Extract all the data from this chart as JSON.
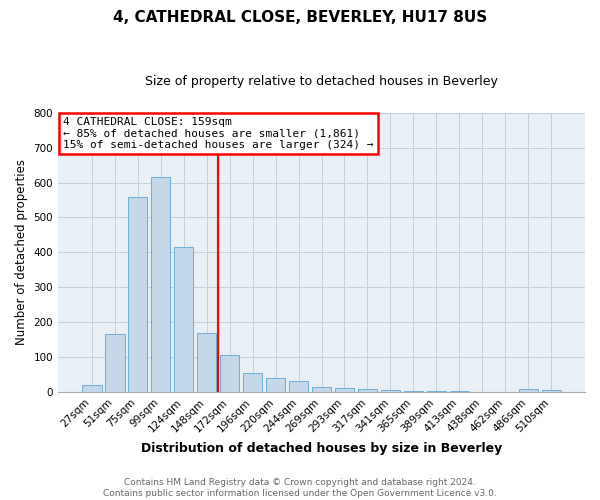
{
  "title1": "4, CATHEDRAL CLOSE, BEVERLEY, HU17 8US",
  "title2": "Size of property relative to detached houses in Beverley",
  "xlabel": "Distribution of detached houses by size in Beverley",
  "ylabel": "Number of detached properties",
  "categories": [
    "27sqm",
    "51sqm",
    "75sqm",
    "99sqm",
    "124sqm",
    "148sqm",
    "172sqm",
    "196sqm",
    "220sqm",
    "244sqm",
    "269sqm",
    "293sqm",
    "317sqm",
    "341sqm",
    "365sqm",
    "389sqm",
    "413sqm",
    "438sqm",
    "462sqm",
    "486sqm",
    "510sqm"
  ],
  "values": [
    20,
    165,
    560,
    615,
    415,
    170,
    105,
    55,
    40,
    32,
    15,
    10,
    8,
    5,
    4,
    3,
    2,
    1,
    1,
    8,
    6
  ],
  "bar_color": "#c5d8ea",
  "bar_edge_color": "#6aaed6",
  "vline_x": 5.5,
  "vline_color": "red",
  "annotation_text_line1": "4 CATHEDRAL CLOSE: 159sqm",
  "annotation_text_line2": "← 85% of detached houses are smaller (1,861)",
  "annotation_text_line3": "15% of semi-detached houses are larger (324) →",
  "annotation_box_facecolor": "white",
  "annotation_box_edgecolor": "red",
  "ylim": [
    0,
    800
  ],
  "yticks": [
    0,
    100,
    200,
    300,
    400,
    500,
    600,
    700,
    800
  ],
  "footnote_line1": "Contains HM Land Registry data © Crown copyright and database right 2024.",
  "footnote_line2": "Contains public sector information licensed under the Open Government Licence v3.0.",
  "fig_facecolor": "white",
  "plot_facecolor": "#e8eff5",
  "grid_color": "#c0cfe0",
  "title1_fontsize": 11,
  "title2_fontsize": 9,
  "ylabel_fontsize": 8.5,
  "xlabel_fontsize": 9,
  "tick_fontsize": 7.5,
  "annotation_fontsize": 8,
  "footnote_fontsize": 6.5
}
